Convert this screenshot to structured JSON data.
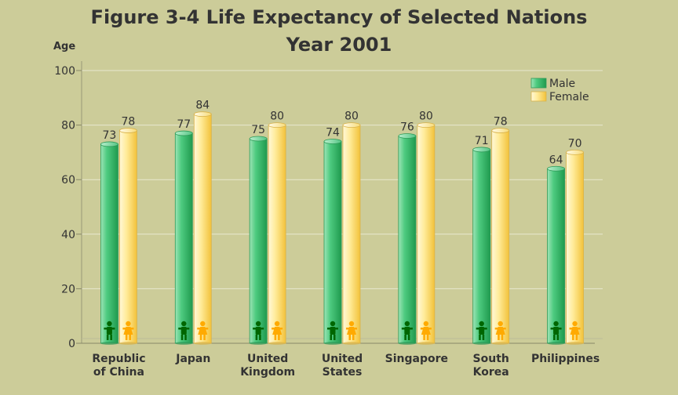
{
  "chart_data": {
    "type": "bar",
    "title": "Figure 3-4 Life Expectancy of Selected Nations",
    "subtitle": "Year 2001",
    "ylabel": "Age",
    "xlabel": "",
    "ylim": [
      0,
      100
    ],
    "yticks": [
      0,
      20,
      40,
      60,
      80,
      100
    ],
    "grid": true,
    "legend_position": "top-right",
    "categories": [
      [
        "Republic",
        "of China"
      ],
      [
        "Japan"
      ],
      [
        "United",
        "Kingdom"
      ],
      [
        "United",
        "States"
      ],
      [
        "Singapore"
      ],
      [
        "South",
        "Korea"
      ],
      [
        "Philippines"
      ]
    ],
    "series": [
      {
        "name": "Male",
        "values": [
          73,
          77,
          75,
          74,
          76,
          71,
          64
        ],
        "color": "#33bb66",
        "icon": "male-figure-icon"
      },
      {
        "name": "Female",
        "values": [
          78,
          84,
          80,
          80,
          80,
          78,
          70
        ],
        "color": "#ffdd55",
        "icon": "female-figure-icon"
      }
    ],
    "colors": {
      "background": "#cccc99",
      "text": "#333333",
      "male_icon": "#006600",
      "female_icon": "#ffaa00"
    }
  }
}
